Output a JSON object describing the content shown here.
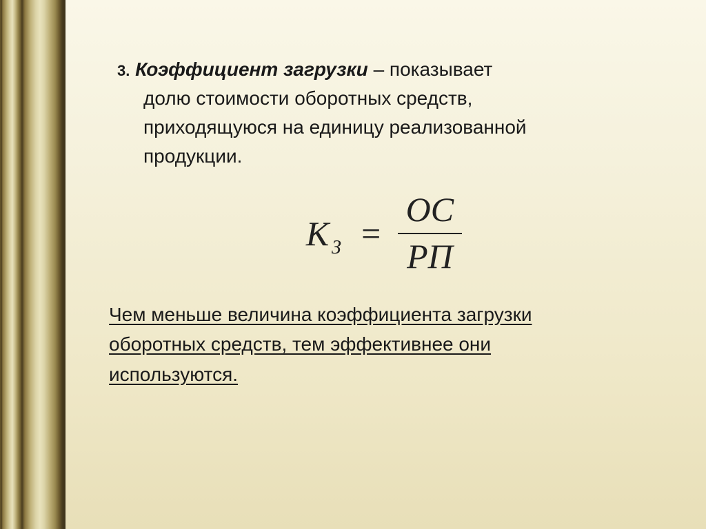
{
  "slide": {
    "background_gradient": [
      "#faf7e8",
      "#f5f1dc",
      "#efe8c8",
      "#e8dfb8"
    ],
    "column_gradient_stops": [
      "#6b5a2e",
      "#4a3d1f",
      "#8a7640",
      "#beb078",
      "#dcd4a8",
      "#e8e2bc",
      "#c8bc88",
      "#9a8a50"
    ],
    "text_color": "#1a1a1a",
    "body_fontsize": 28,
    "formula_fontsize": 50,
    "formula_font": "Times New Roman"
  },
  "content": {
    "item_number": "3.",
    "term": "Коэффициент загрузки",
    "dash": " – ",
    "definition_first": "показывает",
    "definition_rest_l1": "долю стоимости оборотных средств,",
    "definition_rest_l2": "приходящуюся на единицу реализованной",
    "definition_rest_l3": "продукции."
  },
  "formula": {
    "lhs_main": "К",
    "lhs_sub": "З",
    "equals": "=",
    "numerator": "ОС",
    "denominator": "РП"
  },
  "note": {
    "line1": "Чем меньше величина коэффициента загрузки",
    "line2": "оборотных средств, тем эффективнее они",
    "line3": "используются."
  }
}
